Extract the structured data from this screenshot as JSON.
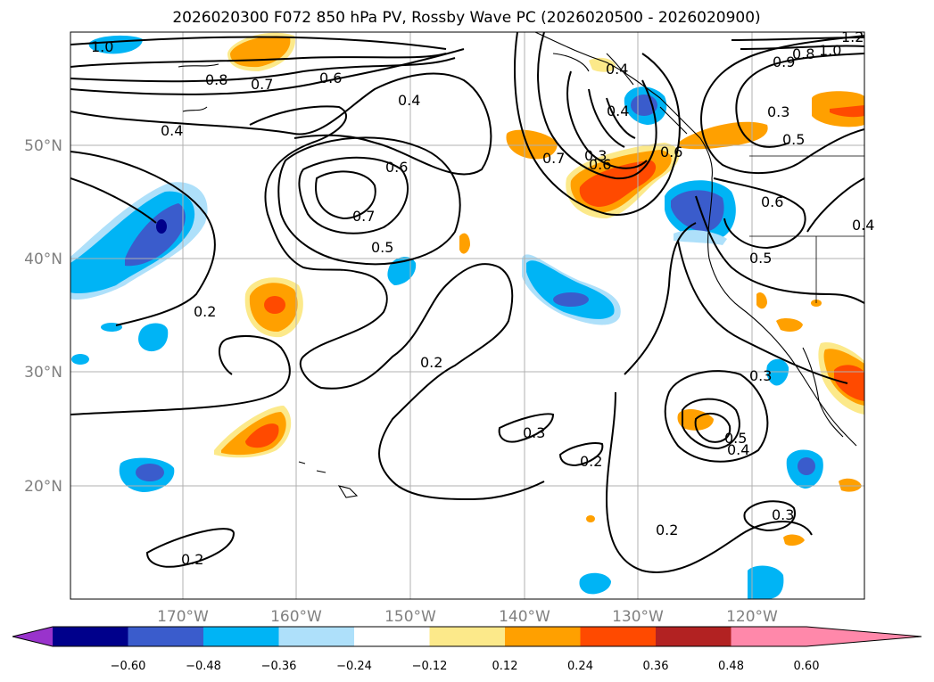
{
  "title": "2026020300 F072 850 hPa PV, Rossby Wave PC (2026020500 - 2026020900)",
  "map": {
    "lon_range": [
      -180,
      -110
    ],
    "lat_range": [
      10,
      60
    ],
    "lon_labels": [
      "170°W",
      "160°W",
      "150°W",
      "140°W",
      "130°W",
      "120°W"
    ],
    "lat_labels": [
      "50°N",
      "40°N",
      "30°N",
      "20°N"
    ],
    "contour_labels": [
      "1.0",
      "0.8",
      "0.7",
      "0.6",
      "0.4",
      "0.4",
      "0.7",
      "0.6",
      "0.7",
      "0.5",
      "0.2",
      "0.2",
      "0.3",
      "0.2",
      "0.2",
      "0.4",
      "0.6",
      "0.6",
      "0.4",
      "0.3",
      "0.5",
      "0.6",
      "0.5",
      "0.4",
      "0.3",
      "0.3",
      "0.5",
      "0.4",
      "0.2",
      "0.3",
      "1.0",
      "0.9",
      "0.8",
      "1.2"
    ]
  },
  "colorbar": {
    "ticks": [
      "−0.60",
      "−0.48",
      "−0.36",
      "−0.24",
      "−0.12",
      "0.12",
      "0.24",
      "0.36",
      "0.48",
      "0.60"
    ],
    "colors": [
      "#9933cc",
      "#00008b",
      "#3a5ccc",
      "#00b4f5",
      "#aee0fa",
      "#ffffff",
      "#fce98a",
      "#ffa000",
      "#ff4a00",
      "#b22222",
      "#ff88aa"
    ]
  }
}
